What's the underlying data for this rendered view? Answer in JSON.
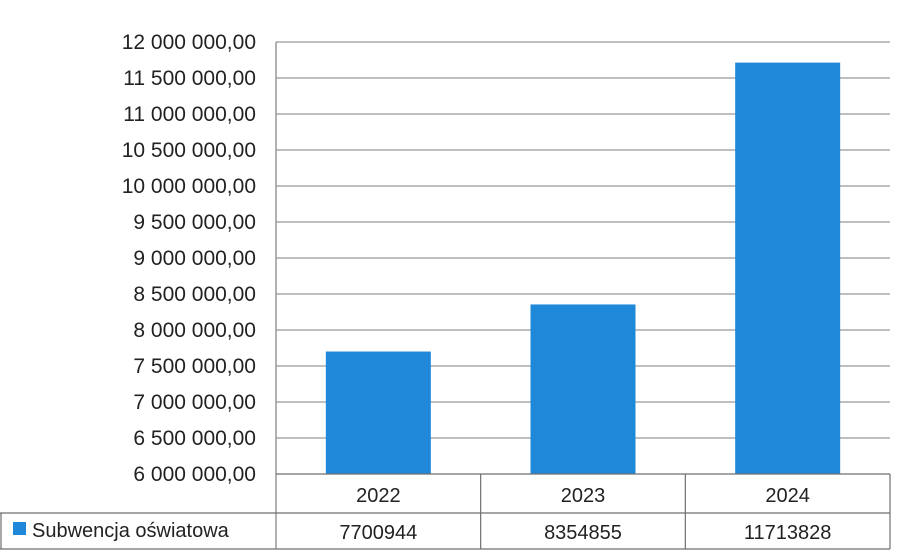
{
  "chart_data": {
    "type": "bar",
    "categories": [
      "2022",
      "2023",
      "2024"
    ],
    "series": [
      {
        "name": "Subwencja oświatowa",
        "values": [
          7700944,
          8354855,
          11713828
        ],
        "color": "#1f88d8"
      }
    ],
    "data_table": {
      "values_text": [
        "7700944",
        "8354855",
        "11713828"
      ]
    },
    "ylim": [
      6000000,
      12000000
    ],
    "y_ticks": [
      6000000,
      6500000,
      7000000,
      7500000,
      8000000,
      8500000,
      9000000,
      9500000,
      10000000,
      10500000,
      11000000,
      11500000,
      12000000
    ],
    "y_tick_labels": [
      "6 000 000,00",
      "6 500 000,00",
      "7 000 000,00",
      "7 500 000,00",
      "8 000 000,00",
      "8 500 000,00",
      "9 000 000,00",
      "9 500 000,00",
      "10 000 000,00",
      "10 500 000,00",
      "11 000 000,00",
      "11 500 000,00",
      "12 000 000,00"
    ],
    "grid": true,
    "legend": "data-table-left",
    "title": "",
    "xlabel": "",
    "ylabel": ""
  }
}
